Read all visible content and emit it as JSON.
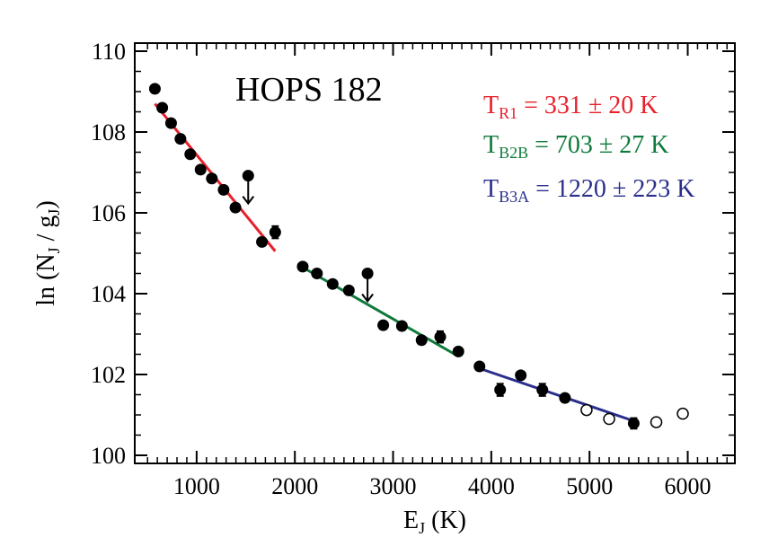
{
  "chart_data": {
    "type": "scatter",
    "title": "HOPS 182",
    "xlabel": {
      "main": "E",
      "sub": "J",
      "tail": " (K)"
    },
    "ylabel": {
      "pre": "ln (N",
      "sub1": "J",
      "mid": " / g",
      "sub2": "J",
      "tail": ")"
    },
    "xlim": [
      370,
      6480
    ],
    "ylim": [
      99.8,
      110.2
    ],
    "xticks": [
      1000,
      2000,
      3000,
      4000,
      5000,
      6000
    ],
    "xtick_labels": [
      "1000",
      "2000",
      "3000",
      "4000",
      "5000",
      "6000"
    ],
    "yticks": [
      100,
      102,
      104,
      106,
      108,
      110
    ],
    "ytick_labels": [
      "100",
      "102",
      "104",
      "106",
      "108",
      "110"
    ],
    "grid": false,
    "points_filled": [
      {
        "x": 575,
        "y": 109.07
      },
      {
        "x": 650,
        "y": 108.6
      },
      {
        "x": 740,
        "y": 108.22
      },
      {
        "x": 835,
        "y": 107.83
      },
      {
        "x": 935,
        "y": 107.45
      },
      {
        "x": 1040,
        "y": 107.07
      },
      {
        "x": 1155,
        "y": 106.85
      },
      {
        "x": 1275,
        "y": 106.57
      },
      {
        "x": 1395,
        "y": 106.13
      },
      {
        "x": 1665,
        "y": 105.28
      },
      {
        "x": 1800,
        "y": 105.52,
        "err": 0.15
      },
      {
        "x": 2080,
        "y": 104.67
      },
      {
        "x": 2225,
        "y": 104.5
      },
      {
        "x": 2385,
        "y": 104.24
      },
      {
        "x": 2550,
        "y": 104.08
      },
      {
        "x": 2900,
        "y": 103.22
      },
      {
        "x": 3090,
        "y": 103.2
      },
      {
        "x": 3290,
        "y": 102.85
      },
      {
        "x": 3480,
        "y": 102.93,
        "err": 0.14
      },
      {
        "x": 3665,
        "y": 102.57
      },
      {
        "x": 3880,
        "y": 102.2
      },
      {
        "x": 4090,
        "y": 101.62,
        "err": 0.15
      },
      {
        "x": 4300,
        "y": 101.98
      },
      {
        "x": 4520,
        "y": 101.62,
        "err": 0.15
      },
      {
        "x": 4750,
        "y": 101.42
      },
      {
        "x": 5450,
        "y": 100.79,
        "err": 0.13
      }
    ],
    "points_open": [
      {
        "x": 4970,
        "y": 101.12
      },
      {
        "x": 5200,
        "y": 100.9
      },
      {
        "x": 5680,
        "y": 100.82
      },
      {
        "x": 5950,
        "y": 101.03
      }
    ],
    "upper_limits": [
      {
        "x": 1525,
        "y": 106.92
      },
      {
        "x": 2740,
        "y": 104.5
      }
    ],
    "fits": [
      {
        "name": "R1",
        "color": "#e8202a",
        "x": [
          575,
          1800
        ],
        "y": [
          108.7,
          105.05
        ]
      },
      {
        "name": "B2B",
        "color": "#0e7a3b",
        "x": [
          2080,
          3665
        ],
        "y": [
          104.65,
          102.45
        ]
      },
      {
        "name": "B3A",
        "color": "#2a2e8c",
        "x": [
          3880,
          5450
        ],
        "y": [
          102.15,
          100.85
        ]
      }
    ],
    "annotations": [
      {
        "main": "T",
        "sub": "R1",
        "rest": " = 331 ± 20 K",
        "color": "#e8202a"
      },
      {
        "main": "T",
        "sub": "B2B",
        "rest": " = 703 ± 27 K",
        "color": "#0e7a3b"
      },
      {
        "main": "T",
        "sub": "B3A",
        "rest": " = 1220 ± 223 K",
        "color": "#2a2e8c"
      }
    ]
  }
}
